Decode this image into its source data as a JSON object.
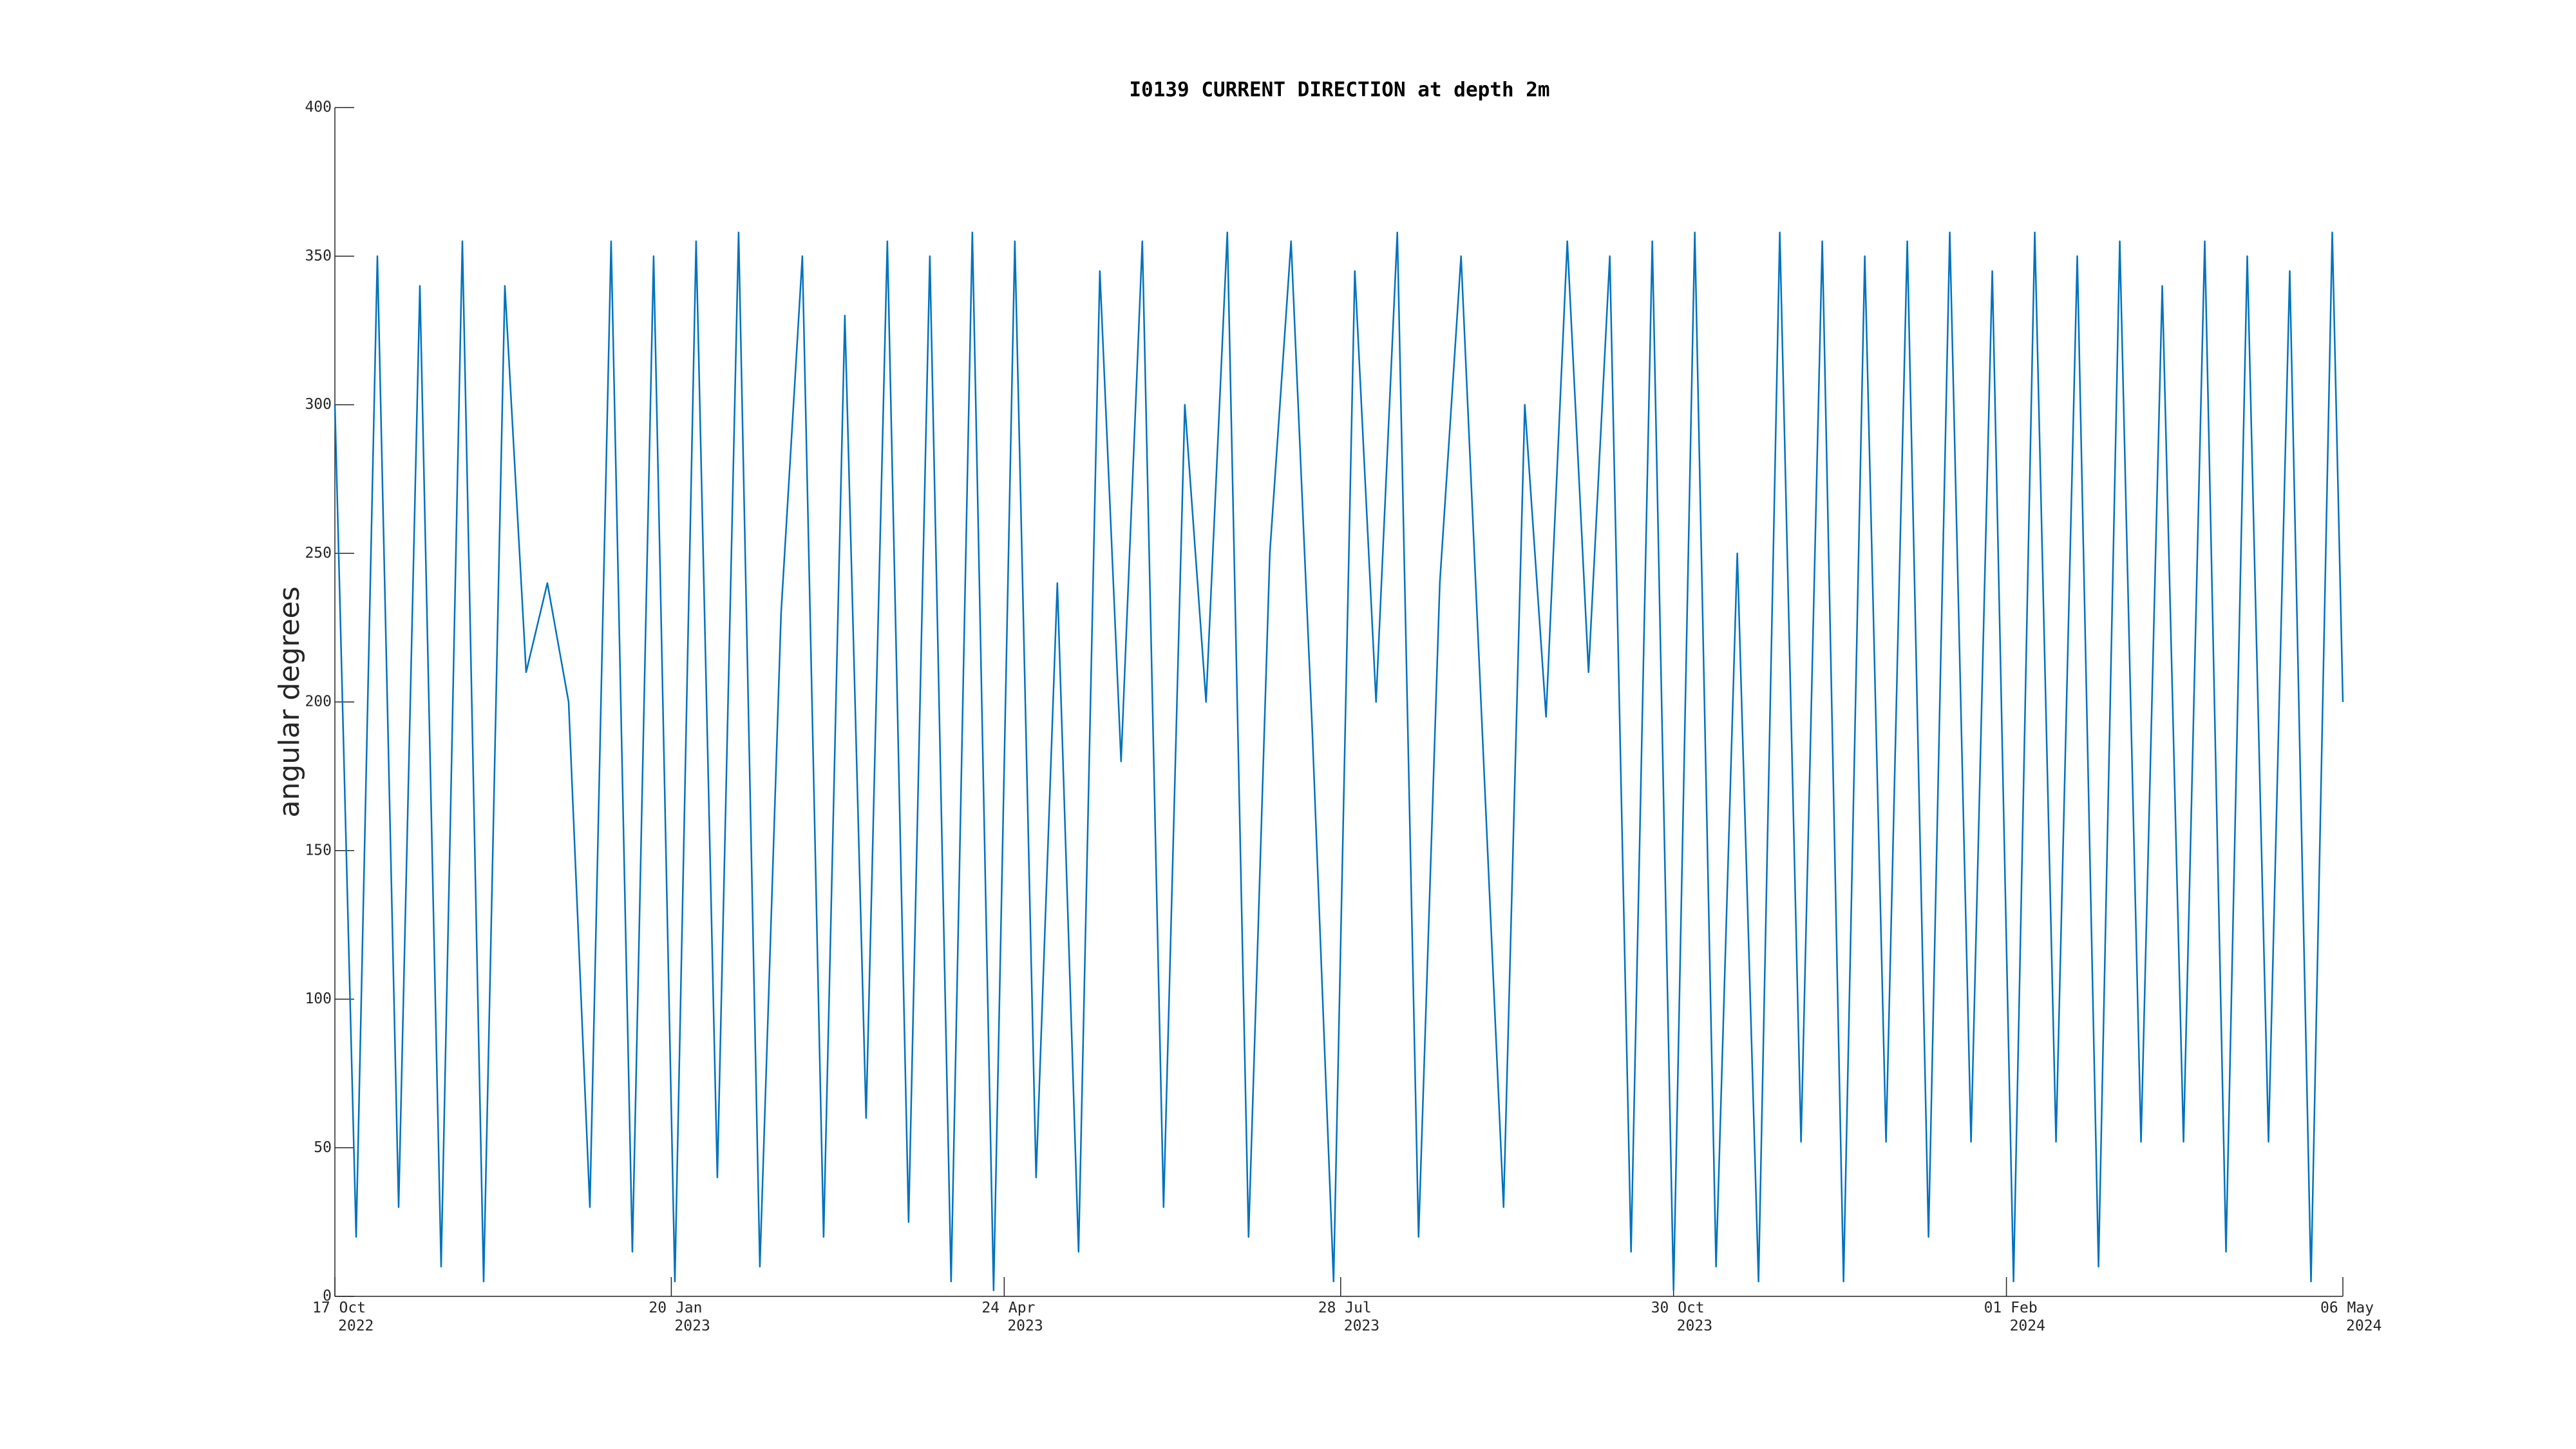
{
  "chart_data": {
    "type": "line",
    "title": "I0139 CURRENT DIRECTION at depth 2m",
    "y_label": "angular degrees",
    "x": [
      "2022-10-17",
      "2022-10-23",
      "2022-10-29",
      "2022-11-04",
      "2022-11-10",
      "2022-11-16",
      "2022-11-22",
      "2022-11-28",
      "2022-12-04",
      "2022-12-10",
      "2022-12-16",
      "2022-12-22",
      "2022-12-28",
      "2023-01-03",
      "2023-01-09",
      "2023-01-15",
      "2023-01-21",
      "2023-01-27",
      "2023-02-02",
      "2023-02-08",
      "2023-02-14",
      "2023-02-20",
      "2023-02-26",
      "2023-03-04",
      "2023-03-10",
      "2023-03-16",
      "2023-03-22",
      "2023-03-28",
      "2023-04-03",
      "2023-04-09",
      "2023-04-15",
      "2023-04-21",
      "2023-04-27",
      "2023-05-03",
      "2023-05-09",
      "2023-05-15",
      "2023-05-21",
      "2023-05-27",
      "2023-06-02",
      "2023-06-08",
      "2023-06-14",
      "2023-06-20",
      "2023-06-26",
      "2023-07-02",
      "2023-07-08",
      "2023-07-14",
      "2023-07-20",
      "2023-07-26",
      "2023-08-01",
      "2023-08-07",
      "2023-08-13",
      "2023-08-19",
      "2023-08-25",
      "2023-08-31",
      "2023-09-06",
      "2023-09-12",
      "2023-09-18",
      "2023-09-24",
      "2023-09-30",
      "2023-10-06",
      "2023-10-12",
      "2023-10-18",
      "2023-10-24",
      "2023-10-30",
      "2023-11-05",
      "2023-11-11",
      "2023-11-17",
      "2023-11-23",
      "2023-11-29",
      "2023-12-05",
      "2023-12-11",
      "2023-12-17",
      "2023-12-23",
      "2023-12-29",
      "2024-01-04",
      "2024-01-10",
      "2024-01-16",
      "2024-01-22",
      "2024-01-28",
      "2024-02-03",
      "2024-02-09",
      "2024-02-15",
      "2024-02-21",
      "2024-02-27",
      "2024-03-04",
      "2024-03-10",
      "2024-03-16",
      "2024-03-22",
      "2024-03-28",
      "2024-04-03",
      "2024-04-09",
      "2024-04-15",
      "2024-04-21",
      "2024-04-27",
      "2024-05-03",
      "2024-05-06"
    ],
    "values": [
      300,
      20,
      350,
      30,
      340,
      10,
      355,
      5,
      340,
      210,
      240,
      200,
      30,
      355,
      15,
      350,
      5,
      355,
      40,
      358,
      10,
      230,
      350,
      20,
      330,
      60,
      355,
      25,
      350,
      5,
      358,
      2,
      355,
      40,
      240,
      15,
      345,
      180,
      355,
      30,
      300,
      200,
      358,
      20,
      250,
      355,
      190,
      5,
      345,
      200,
      358,
      20,
      240,
      350,
      190,
      30,
      300,
      195,
      355,
      210,
      350,
      15,
      355,
      2,
      358,
      10,
      250,
      5,
      358,
      52,
      355,
      5,
      350,
      52,
      355,
      20,
      358,
      52,
      345,
      5,
      358,
      52,
      350,
      10,
      355,
      52,
      340,
      52,
      355,
      15,
      350,
      52,
      345,
      5,
      358,
      200
    ],
    "color": "#0072bd",
    "xlim": [
      "2022-10-17",
      "2024-05-06"
    ],
    "xticks": [
      {
        "value": "2022-10-17",
        "label": "17 Oct\n2022"
      },
      {
        "value": "2023-01-20",
        "label": "20 Jan\n2023"
      },
      {
        "value": "2023-04-24",
        "label": "24 Apr\n2023"
      },
      {
        "value": "2023-07-28",
        "label": "28 Jul\n2023"
      },
      {
        "value": "2023-10-30",
        "label": "30 Oct\n2023"
      },
      {
        "value": "2024-02-01",
        "label": "01 Feb\n2024"
      },
      {
        "value": "2024-05-06",
        "label": "06 May\n2024"
      }
    ],
    "ylim": [
      0,
      400
    ],
    "yticks": [
      0,
      50,
      100,
      150,
      200,
      250,
      300,
      350,
      400
    ]
  }
}
